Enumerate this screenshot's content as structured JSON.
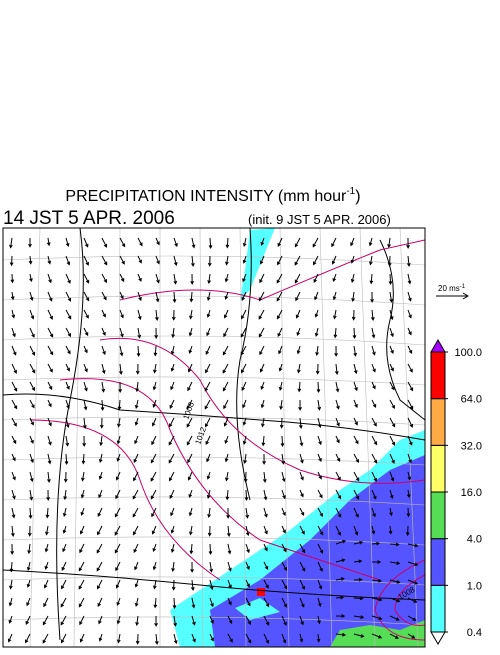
{
  "header": {
    "title": "PRECIPITATION INTENSITY (mm hour",
    "title_sup": "-1",
    "title_end": ")",
    "valid_time": "14 JST 5 APR. 2006",
    "init_time": "(init. 9 JST 5 APR. 2006)"
  },
  "vector_scale": {
    "label": "20 ms",
    "label_sup": "-1"
  },
  "colorbar": {
    "ticks": [
      {
        "value": 0.4,
        "label": "0.4"
      },
      {
        "value": 1,
        "label": "1.0"
      },
      {
        "value": 4,
        "label": "4.0"
      },
      {
        "value": 16,
        "label": "16.0"
      },
      {
        "value": 32,
        "label": "32.0"
      },
      {
        "value": 64,
        "label": "64.0"
      },
      {
        "value": 100,
        "label": "100.0"
      }
    ],
    "colors": [
      "#55ffff",
      "#5555ff",
      "#55dd55",
      "#ffff66",
      "#ffaa44",
      "#ff0000"
    ],
    "under_color": "#ffffff",
    "over_color": "#aa00ff"
  },
  "map_labels": [
    "1008",
    "1012",
    "1008"
  ]
}
